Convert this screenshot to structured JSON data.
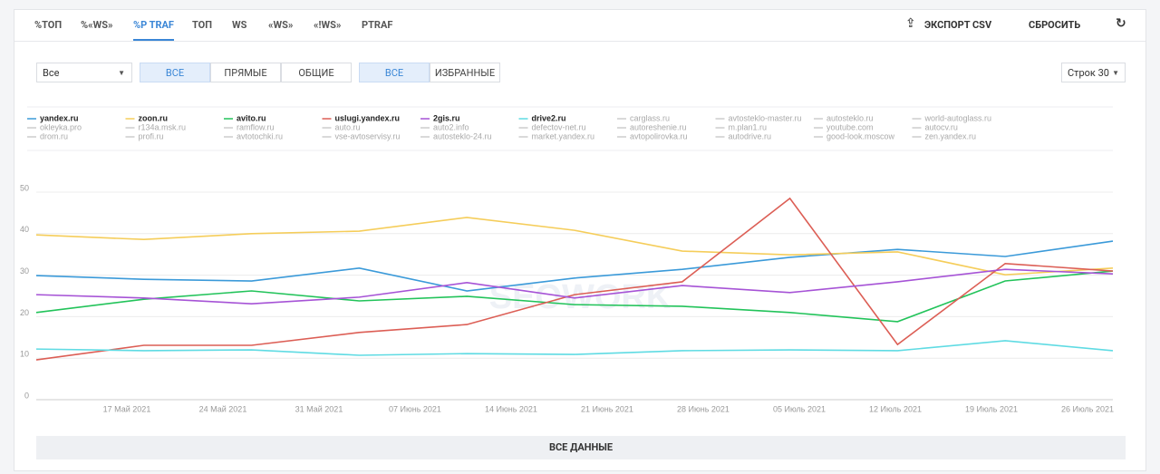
{
  "tabs": [
    "%ТОП",
    "%«WS»",
    "%P TRAF",
    "ТОП",
    "WS",
    "«WS»",
    "«!WS»",
    "PTRAF"
  ],
  "actions": {
    "export": "ЭКСПОРТ CSV",
    "reset": "СБРОСИТЬ"
  },
  "controls": {
    "select": "Все",
    "type_buttons": [
      "ВСЕ",
      "ПРЯМЫЕ",
      "ОБЩИЕ"
    ],
    "site_buttons": [
      "ВСЕ",
      "ИЗБРАННЫЕ"
    ],
    "rows": "Строк 30"
  },
  "inactive_sites": [
    "carglass.ru",
    "avtosteklo-master.ru",
    "autosteklo.ru",
    "world-autoglass.ru",
    "okleyka.pro",
    "r134a.msk.ru",
    "ramflow.ru",
    "auto.ru",
    "auto2.info",
    "defectov-net.ru",
    "autoreshenie.ru",
    "m.plan1.ru",
    "youtube.com",
    "autocv.ru",
    "drom.ru",
    "profi.ru",
    "avtotochki.ru",
    "vse-avtoservisy.ru",
    "autosteklo-24.ru",
    "market.yandex.ru",
    "avtopolirovka.ru",
    "autodrive.ru",
    "good-look.moscow",
    "zen.yandex.ru"
  ],
  "watermark": "SEOWORK",
  "footer_button": "ВСЕ ДАННЫЕ",
  "chart_data": {
    "type": "line",
    "x_labels": [
      "17 Май 2021",
      "24 Май 2021",
      "31 Май 2021",
      "07 Июнь 2021",
      "14 Июнь 2021",
      "21 Июнь 2021",
      "28 Июнь 2021",
      "05 Июль 2021",
      "12 Июль 2021",
      "19 Июль 2021",
      "26 Июль 2021"
    ],
    "ylim": [
      0,
      50
    ],
    "yticks": [
      0,
      10,
      20,
      30,
      40,
      50
    ],
    "grid": true,
    "series": [
      {
        "name": "yandex.ru",
        "color": "#3b9ad9",
        "values": [
          29.9,
          29.0,
          28.6,
          31.7,
          26.2,
          29.3,
          31.4,
          34.3,
          36.2,
          34.5,
          38.2
        ]
      },
      {
        "name": "zoon.ru",
        "color": "#f5cd5a",
        "values": [
          39.7,
          38.6,
          40.0,
          40.6,
          43.9,
          40.8,
          35.8,
          34.9,
          35.6,
          30.1,
          31.7
        ]
      },
      {
        "name": "avito.ru",
        "color": "#22c35a",
        "values": [
          21.0,
          24.2,
          26.2,
          23.8,
          24.9,
          22.9,
          22.5,
          21.0,
          18.8,
          28.6,
          31.0
        ]
      },
      {
        "name": "uslugi.yandex.ru",
        "color": "#dc5e55",
        "values": [
          9.6,
          13.1,
          13.1,
          16.2,
          18.1,
          25.3,
          28.4,
          48.5,
          13.3,
          32.8,
          31.0
        ]
      },
      {
        "name": "2gis.ru",
        "color": "#a653d6",
        "values": [
          25.3,
          24.5,
          23.1,
          24.7,
          28.2,
          24.5,
          27.5,
          25.8,
          28.4,
          31.4,
          30.3
        ]
      },
      {
        "name": "drive2.ru",
        "color": "#5fdbe3",
        "values": [
          12.2,
          11.8,
          12.0,
          10.7,
          11.1,
          10.9,
          11.8,
          12.0,
          11.8,
          14.2,
          11.8
        ]
      }
    ]
  }
}
